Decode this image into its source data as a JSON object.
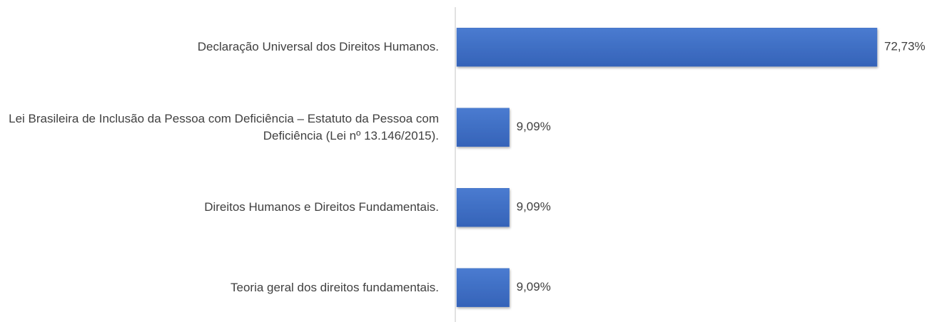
{
  "chart_data": {
    "type": "bar",
    "orientation": "horizontal",
    "categories": [
      "Declaração Universal dos Direitos Humanos.",
      "Lei Brasileira de Inclusão da Pessoa com Deficiência – Estatuto da Pessoa com Deficiência (Lei nº 13.146/2015).",
      "Direitos Humanos e Direitos Fundamentais.",
      "Teoria geral dos direitos fundamentais."
    ],
    "values": [
      72.73,
      9.09,
      9.09,
      9.09
    ],
    "value_labels": [
      "72,73%",
      "9,09%",
      "9,09%",
      "9,09%"
    ],
    "color": "#4472c4"
  }
}
